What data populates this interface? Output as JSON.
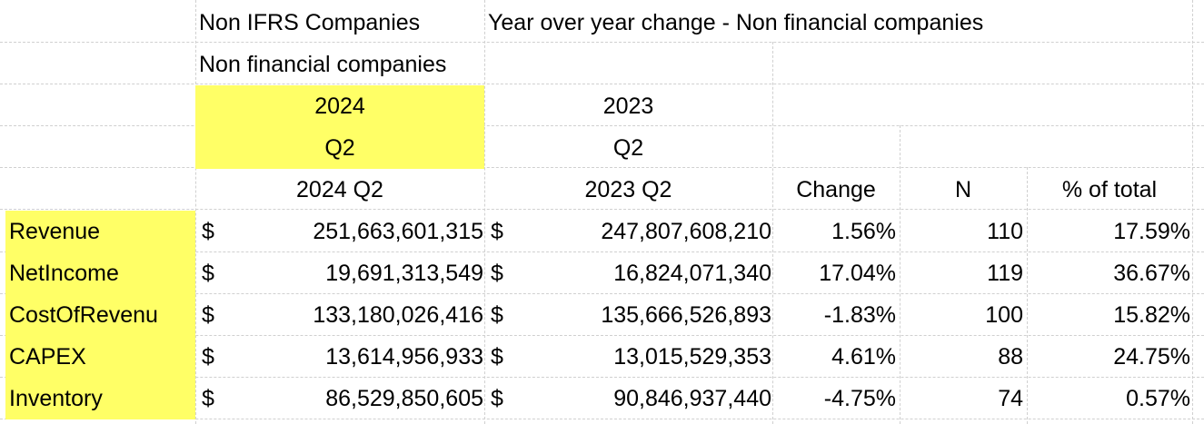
{
  "header": {
    "title_left": "Non IFRS Companies",
    "title_right": "Year over year change - Non financial companies",
    "subtitle": "Non financial companies",
    "year_2024": "2024",
    "year_2023": "2023",
    "q_2024": "Q2",
    "q_2023": "Q2"
  },
  "columns": {
    "col_2024": "2024 Q2",
    "col_2023": "2023 Q2",
    "change": "Change",
    "n": "N",
    "pct_total": "% of total"
  },
  "rows": [
    {
      "label": "Revenue",
      "cur1": "$",
      "v2024": "251,663,601,315",
      "cur2": "$",
      "v2023": "247,807,608,210",
      "change": "1.56%",
      "n": "110",
      "pct": "17.59%"
    },
    {
      "label": "NetIncome",
      "cur1": "$",
      "v2024": "19,691,313,549",
      "cur2": "$",
      "v2023": "16,824,071,340",
      "change": "17.04%",
      "n": "119",
      "pct": "36.67%"
    },
    {
      "label": "CostOfRevenu",
      "cur1": "$",
      "v2024": "133,180,026,416",
      "cur2": "$",
      "v2023": "135,666,526,893",
      "change": "-1.83%",
      "n": "100",
      "pct": "15.82%"
    },
    {
      "label": "CAPEX",
      "cur1": "$",
      "v2024": "13,614,956,933",
      "cur2": "$",
      "v2023": "13,015,529,353",
      "change": "4.61%",
      "n": "88",
      "pct": "24.75%"
    },
    {
      "label": "Inventory",
      "cur1": "$",
      "v2024": "86,529,850,605",
      "cur2": "$",
      "v2023": "90,846,937,440",
      "change": "-4.75%",
      "n": "74",
      "pct": "0.57%"
    }
  ],
  "colors": {
    "highlight": "#ffff66",
    "gridline": "#d0d0d0"
  }
}
